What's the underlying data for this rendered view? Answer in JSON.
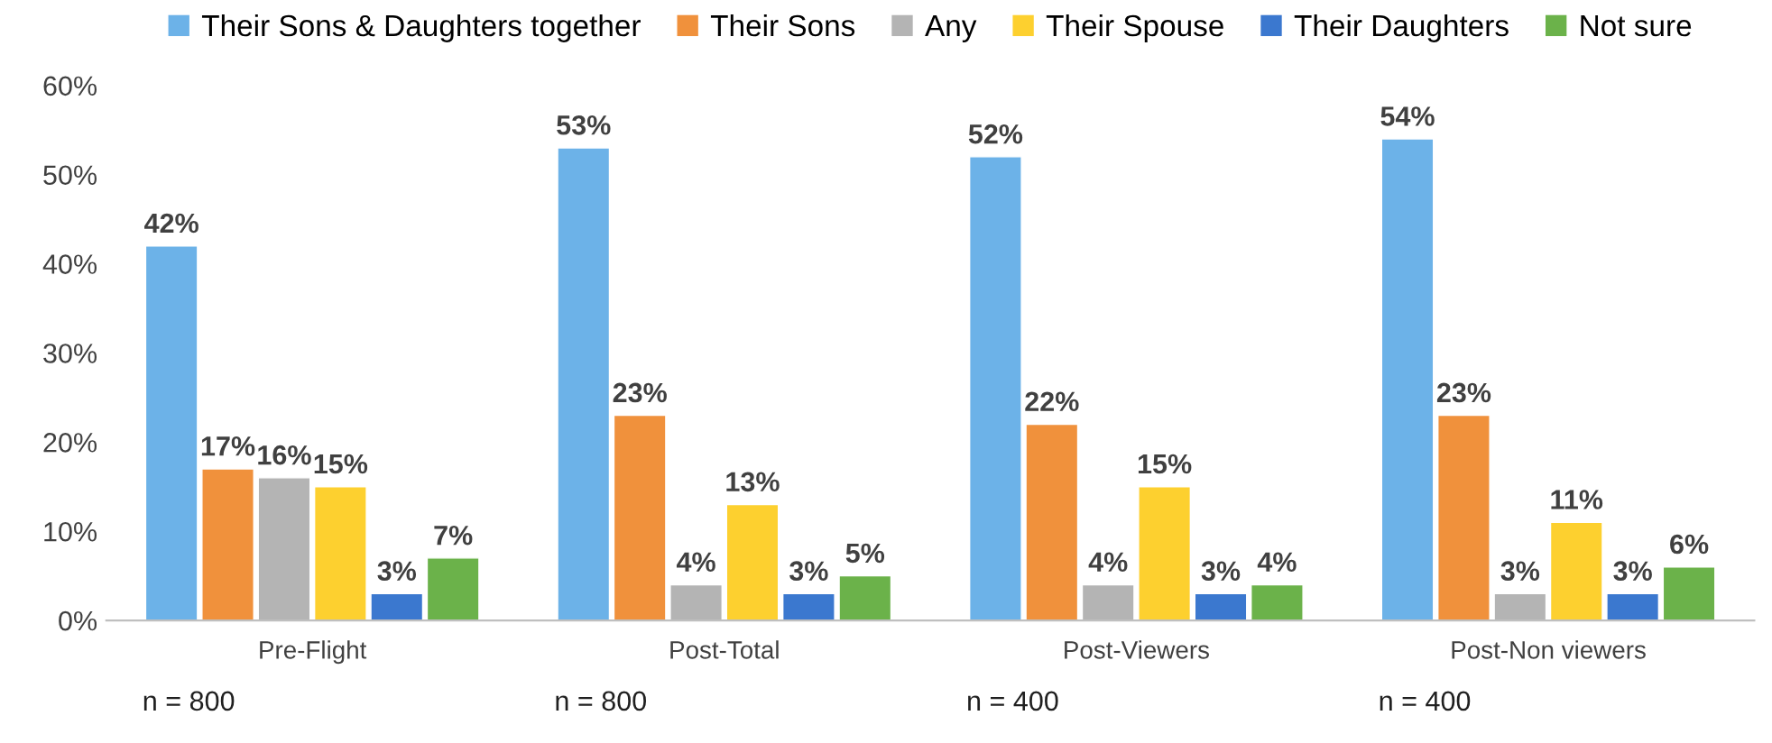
{
  "chart_data": {
    "type": "bar",
    "categories": [
      "Pre-Flight",
      "Post-Total",
      "Post-Viewers",
      "Post-Non viewers"
    ],
    "series": [
      {
        "name": "Their Sons & Daughters together",
        "color": "#6cb2e8",
        "values": [
          42,
          53,
          52,
          54
        ],
        "value_labels": [
          "42%",
          "53%",
          "52%",
          "54%"
        ]
      },
      {
        "name": "Their Sons",
        "color": "#f0913c",
        "values": [
          17,
          23,
          22,
          23
        ],
        "value_labels": [
          "17%",
          "23%",
          "22%",
          "23%"
        ]
      },
      {
        "name": "Any",
        "color": "#b4b4b4",
        "values": [
          16,
          4,
          4,
          3
        ],
        "value_labels": [
          "16%",
          "4%",
          "4%",
          "3%"
        ]
      },
      {
        "name": "Their Spouse",
        "color": "#fdd02f",
        "values": [
          15,
          13,
          15,
          11
        ],
        "value_labels": [
          "15%",
          "13%",
          "15%",
          "11%"
        ]
      },
      {
        "name": "Their Daughters",
        "color": "#3b78cf",
        "values": [
          3,
          3,
          3,
          3
        ],
        "value_labels": [
          "3%",
          "3%",
          "3%",
          "3%"
        ]
      },
      {
        "name": "Not sure",
        "color": "#6bb24a",
        "values": [
          7,
          5,
          4,
          6
        ],
        "value_labels": [
          "7%",
          "5%",
          "4%",
          "6%"
        ]
      }
    ],
    "ylim": [
      0,
      60
    ],
    "yticks": [
      {
        "value": 0,
        "label": "0%"
      },
      {
        "value": 10,
        "label": "10%"
      },
      {
        "value": 20,
        "label": "20%"
      },
      {
        "value": 30,
        "label": "30%"
      },
      {
        "value": 40,
        "label": "40%"
      },
      {
        "value": 50,
        "label": "50%"
      },
      {
        "value": 60,
        "label": "60%"
      }
    ],
    "annotations": [
      "n = 800",
      "n = 800",
      "n = 400",
      "n = 400"
    ],
    "legend": "top",
    "grid": false
  }
}
